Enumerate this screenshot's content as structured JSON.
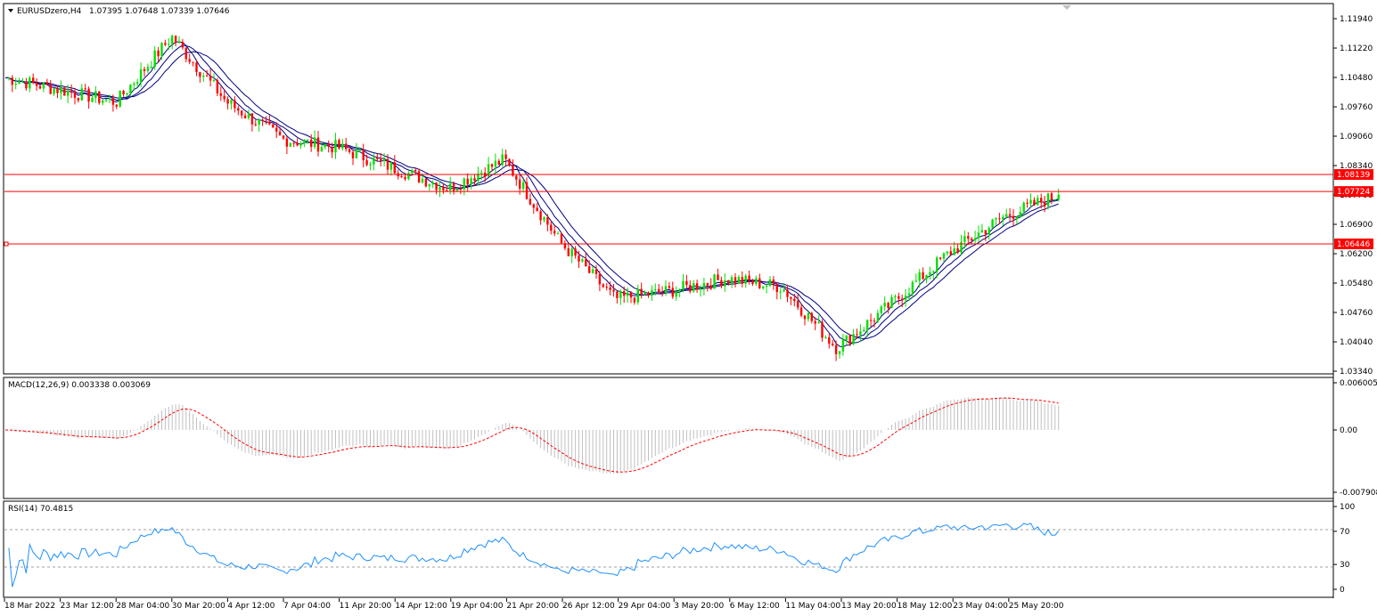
{
  "header": {
    "symbol_label": "EURUSDzero,H4",
    "ohlc_label": "1.07395 1.07648 1.07339 1.07646"
  },
  "price_axis": {
    "labels": [
      "1.11940",
      "1.11220",
      "1.10480",
      "1.09760",
      "1.09060",
      "1.08340",
      "1.07700",
      "1.06900",
      "1.06200",
      "1.05480",
      "1.04760",
      "1.04040",
      "1.03340"
    ]
  },
  "levels": [
    {
      "price": 1.08139,
      "label": "1.08139",
      "color": "#ff0000"
    },
    {
      "price": 1.07724,
      "label": "1.07724",
      "color": "#ff0000"
    },
    {
      "price": 1.06446,
      "label": "1.06446",
      "color": "#ff0000"
    }
  ],
  "macd": {
    "label": "MACD(12,26,9) 0.003338 0.003069",
    "axis": [
      "0.006005",
      "0.00",
      "-0.007908"
    ]
  },
  "rsi": {
    "label": "RSI(14) 70.4815",
    "axis": [
      "100",
      "70",
      "30",
      "0"
    ]
  },
  "time_axis": [
    "18 Mar 2022",
    "23 Mar 12:00",
    "28 Mar 04:00",
    "30 Mar 20:00",
    "4 Apr 12:00",
    "7 Apr 04:00",
    "11 Apr 20:00",
    "14 Apr 12:00",
    "19 Apr 04:00",
    "21 Apr 20:00",
    "26 Apr 12:00",
    "29 Apr 04:00",
    "3 May 20:00",
    "6 May 12:00",
    "11 May 04:00",
    "13 May 20:00",
    "18 May 12:00",
    "23 May 04:00",
    "25 May 20:00"
  ],
  "colors": {
    "bull": "#00e000",
    "bear": "#ff0000",
    "ma": "#000080",
    "macd_hist": "#c0c0c0",
    "macd_signal": "#ff0000",
    "rsi_line": "#1e90ff",
    "level": "#ff0000"
  },
  "chart_data": {
    "type": "candlestick",
    "symbol": "EURUSDzero",
    "timeframe": "H4",
    "ylim": [
      1.0334,
      1.1194
    ],
    "waypoints": [
      {
        "t": "18 Mar 2022",
        "close": 1.105
      },
      {
        "t": "23 Mar 12:00",
        "close": 1.102
      },
      {
        "t": "28 Mar 04:00",
        "close": 1.099
      },
      {
        "t": "30 Mar 20:00",
        "close": 1.115
      },
      {
        "t": "4 Apr 12:00",
        "close": 1.099
      },
      {
        "t": "7 Apr 04:00",
        "close": 1.09
      },
      {
        "t": "11 Apr 20:00",
        "close": 1.088
      },
      {
        "t": "14 Apr 12:00",
        "close": 1.083
      },
      {
        "t": "19 Apr 04:00",
        "close": 1.078
      },
      {
        "t": "21 Apr 20:00",
        "close": 1.085
      },
      {
        "t": "26 Apr 12:00",
        "close": 1.065
      },
      {
        "t": "29 Apr 04:00",
        "close": 1.051
      },
      {
        "t": "3 May 20:00",
        "close": 1.053
      },
      {
        "t": "6 May 12:00",
        "close": 1.056
      },
      {
        "t": "11 May 04:00",
        "close": 1.054
      },
      {
        "t": "13 May 20:00",
        "close": 1.039
      },
      {
        "t": "18 May 12:00",
        "close": 1.05
      },
      {
        "t": "23 May 04:00",
        "close": 1.062
      },
      {
        "t": "25 May 20:00",
        "close": 1.071
      },
      {
        "t": "last",
        "close": 1.07646
      }
    ],
    "macd": {
      "ylim": [
        -0.007908,
        0.006005
      ],
      "last_main": 0.003338,
      "last_signal": 0.003069
    },
    "rsi": {
      "ylim": [
        0,
        100
      ],
      "levels": [
        70,
        30
      ],
      "last": 70.4815
    }
  }
}
